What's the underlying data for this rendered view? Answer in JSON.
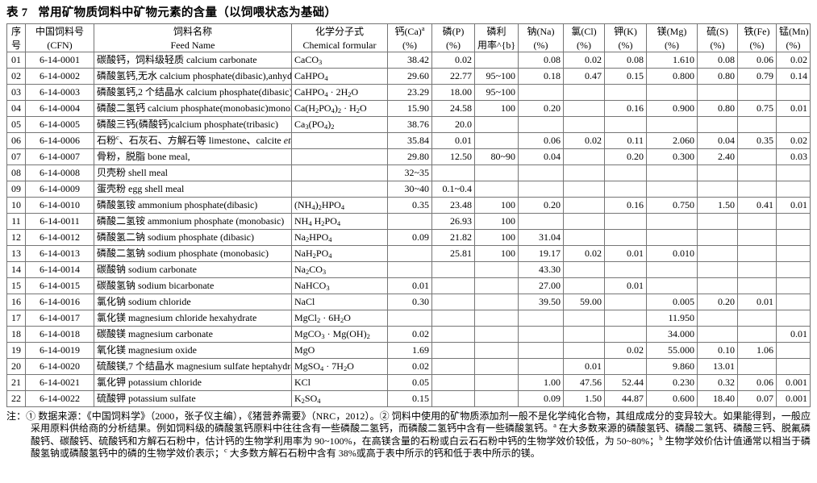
{
  "title": {
    "prefix": "表 7",
    "text": "常用矿物质饲料中矿物元素的含量（以饲喂状态为基础）"
  },
  "table": {
    "headers": {
      "no": [
        "序",
        "号"
      ],
      "cfn": [
        "中国饲料号",
        "(CFN)"
      ],
      "name": [
        "饲料名称",
        "Feed Name"
      ],
      "formula": [
        "化学分子式",
        "Chemical formular"
      ],
      "minerals": [
        {
          "l1": "钙(Ca)^{a}",
          "l2": "(%)"
        },
        {
          "l1": "磷(P)",
          "l2": "(%)"
        },
        {
          "l1": "磷利",
          "l2": "用率^{b}"
        },
        {
          "l1": "钠(Na)",
          "l2": "(%)"
        },
        {
          "l1": "氯(Cl)",
          "l2": "(%)"
        },
        {
          "l1": "钾(K)",
          "l2": "(%)"
        },
        {
          "l1": "镁(Mg)",
          "l2": "(%)"
        },
        {
          "l1": "硫(S)",
          "l2": "(%)"
        },
        {
          "l1": "铁(Fe)",
          "l2": "(%)"
        },
        {
          "l1": "锰(Mn)",
          "l2": "(%)"
        }
      ]
    },
    "rows": [
      {
        "no": "01",
        "cfn": "6-14-0001",
        "name": "碳酸钙，饲料级轻质 calcium carbonate",
        "formula": "CaCO~{3}",
        "values": [
          "38.42",
          "0.02",
          "",
          "0.08",
          "0.02",
          "0.08",
          "1.610",
          "0.08",
          "0.06",
          "0.02"
        ]
      },
      {
        "no": "02",
        "cfn": "6-14-0002",
        "name": "磷酸氢钙,无水 calcium phosphate(dibasic),anhydrous",
        "formula": "CaHPO~{4}",
        "values": [
          "29.60",
          "22.77",
          "95~100",
          "0.18",
          "0.47",
          "0.15",
          "0.800",
          "0.80",
          "0.79",
          "0.14"
        ]
      },
      {
        "no": "03",
        "cfn": "6-14-0003",
        "name": "磷酸氢钙,2 个结晶水 calcium phosphate(dibasic),dehydrate",
        "formula": "CaHPO~{4} · 2H~{2}O",
        "values": [
          "23.29",
          "18.00",
          "95~100",
          "",
          "",
          "",
          "",
          "",
          "",
          ""
        ]
      },
      {
        "no": "04",
        "cfn": "6-14-0004",
        "name": "磷酸二氢钙 calcium phosphate(monobasic)monohydrate",
        "formula": "Ca(H~{2}PO~{4})~{2} · H~{2}O",
        "values": [
          "15.90",
          "24.58",
          "100",
          "0.20",
          "",
          "0.16",
          "0.900",
          "0.80",
          "0.75",
          "0.01"
        ]
      },
      {
        "no": "05",
        "cfn": "6-14-0005",
        "name": "磷酸三钙(磷酸钙)calcium phosphate(tribasic)",
        "formula": "Ca~{3}(PO~{4})~{2}",
        "values": [
          "38.76",
          "20.0",
          "",
          "",
          "",
          "",
          "",
          "",
          "",
          ""
        ]
      },
      {
        "no": "06",
        "cfn": "6-14-0006",
        "name": "石粉^{c}、石灰石、方解石等 limestone、calcite *etc.*",
        "formula": "",
        "values": [
          "35.84",
          "0.01",
          "",
          "0.06",
          "0.02",
          "0.11",
          "2.060",
          "0.04",
          "0.35",
          "0.02"
        ]
      },
      {
        "no": "07",
        "cfn": "6-14-0007",
        "name": "骨粉，脱脂 bone meal,",
        "formula": "",
        "values": [
          "29.80",
          "12.50",
          "80~90",
          "0.04",
          "",
          "0.20",
          "0.300",
          "2.40",
          "",
          "0.03"
        ]
      },
      {
        "no": "08",
        "cfn": "6-14-0008",
        "name": "贝壳粉 shell meal",
        "formula": "",
        "values": [
          "32~35",
          "",
          "",
          "",
          "",
          "",
          "",
          "",
          "",
          ""
        ]
      },
      {
        "no": "09",
        "cfn": "6-14-0009",
        "name": "蛋壳粉 egg shell meal",
        "formula": "",
        "values": [
          "30~40",
          "0.1~0.4",
          "",
          "",
          "",
          "",
          "",
          "",
          "",
          ""
        ]
      },
      {
        "no": "10",
        "cfn": "6-14-0010",
        "name": "磷酸氢铵 ammonium phosphate(dibasic)",
        "formula": "(NH~{4})~{2}HPO~{4}",
        "values": [
          "0.35",
          "23.48",
          "100",
          "0.20",
          "",
          "0.16",
          "0.750",
          "1.50",
          "0.41",
          "0.01"
        ]
      },
      {
        "no": "11",
        "cfn": "6-14-0011",
        "name": "磷酸二氢铵 ammonium phosphate (monobasic)",
        "formula": "NH~{4} H~{2}PO~{4}",
        "values": [
          "",
          "26.93",
          "100",
          "",
          "",
          "",
          "",
          "",
          "",
          ""
        ]
      },
      {
        "no": "12",
        "cfn": "6-14-0012",
        "name": "磷酸氢二钠 sodium phosphate (dibasic)",
        "formula": "Na~{2}HPO~{4}",
        "values": [
          "0.09",
          "21.82",
          "100",
          "31.04",
          "",
          "",
          "",
          "",
          "",
          ""
        ]
      },
      {
        "no": "13",
        "cfn": "6-14-0013",
        "name": "磷酸二氢钠 sodium phosphate (monobasic)",
        "formula": "NaH~{2}PO~{4}",
        "values": [
          "",
          "25.81",
          "100",
          "19.17",
          "0.02",
          "0.01",
          "0.010",
          "",
          "",
          ""
        ]
      },
      {
        "no": "14",
        "cfn": "6-14-0014",
        "name": "碳酸钠 sodium carbonate",
        "formula": "Na~{2}CO~{3}",
        "values": [
          "",
          "",
          "",
          "43.30",
          "",
          "",
          "",
          "",
          "",
          ""
        ]
      },
      {
        "no": "15",
        "cfn": "6-14-0015",
        "name": "碳酸氢钠 sodium bicarbonate",
        "formula": "NaHCO~{3}",
        "values": [
          "0.01",
          "",
          "",
          "27.00",
          "",
          "0.01",
          "",
          "",
          "",
          ""
        ]
      },
      {
        "no": "16",
        "cfn": "6-14-0016",
        "name": "氯化钠 sodium chloride",
        "formula": "NaCl",
        "values": [
          "0.30",
          "",
          "",
          "39.50",
          "59.00",
          "",
          "0.005",
          "0.20",
          "0.01",
          ""
        ]
      },
      {
        "no": "17",
        "cfn": "6-14-0017",
        "name": "氯化镁 magnesium chloride hexahydrate",
        "formula": "MgCl~{2} · 6H~{2}O",
        "values": [
          "",
          "",
          "",
          "",
          "",
          "",
          "11.950",
          "",
          "",
          ""
        ]
      },
      {
        "no": "18",
        "cfn": "6-14-0018",
        "name": "碳酸镁 magnesium carbonate",
        "formula": "MgCO~{3} · Mg(OH)~{2}",
        "values": [
          "0.02",
          "",
          "",
          "",
          "",
          "",
          "34.000",
          "",
          "",
          "0.01"
        ]
      },
      {
        "no": "19",
        "cfn": "6-14-0019",
        "name": "氧化镁 magnesium oxide",
        "formula": "MgO",
        "values": [
          "1.69",
          "",
          "",
          "",
          "",
          "0.02",
          "55.000",
          "0.10",
          "1.06",
          ""
        ]
      },
      {
        "no": "20",
        "cfn": "6-14-0020",
        "name": "硫酸镁,7 个结晶水 magnesium sulfate heptahydrate",
        "formula": "MgSO~{4} · 7H~{2}O",
        "values": [
          "0.02",
          "",
          "",
          "",
          "0.01",
          "",
          "9.860",
          "13.01",
          "",
          ""
        ]
      },
      {
        "no": "21",
        "cfn": "6-14-0021",
        "name": "氯化钾 potassium chloride",
        "formula": "KCl",
        "values": [
          "0.05",
          "",
          "",
          "1.00",
          "47.56",
          "52.44",
          "0.230",
          "0.32",
          "0.06",
          "0.001"
        ]
      },
      {
        "no": "22",
        "cfn": "6-14-0022",
        "name": "硫酸钾 potassium sulfate",
        "formula": "K~{2}SO~{4}",
        "values": [
          "0.15",
          "",
          "",
          "0.09",
          "1.50",
          "44.87",
          "0.600",
          "18.40",
          "0.07",
          "0.001"
        ]
      }
    ]
  },
  "footnote": "注：① 数据来源：《中国饲料学》（2000，张子仪主编），《猪营养需要》（NRC，2012）。② 饲料中使用的矿物质添加剂一般不是化学纯化合物，其组成成分的变异较大。如果能得到，一般应采用原料供给商的分析结果。例如饲料级的磷酸氢钙原料中往往含有一些磷酸二氢钙，而磷酸二氢钙中含有一些磷酸氢钙。^{a} 在大多数来源的磷酸氢钙、磷酸二氢钙、磷酸三钙、脱氟磷酸钙、碳酸钙、硫酸钙和方解石石粉中，估计钙的生物学利用率为 90~100%，在高镁含量的石粉或白云石石粉中钙的生物学效价较低，为 50~80%；^{b} 生物学效价估计值通常以相当于磷酸氢钠或磷酸氢钙中的磷的生物学效价表示；^{c} 大多数方解石石粉中含有 38%或高于表中所示的钙和低于表中所示的镁。"
}
